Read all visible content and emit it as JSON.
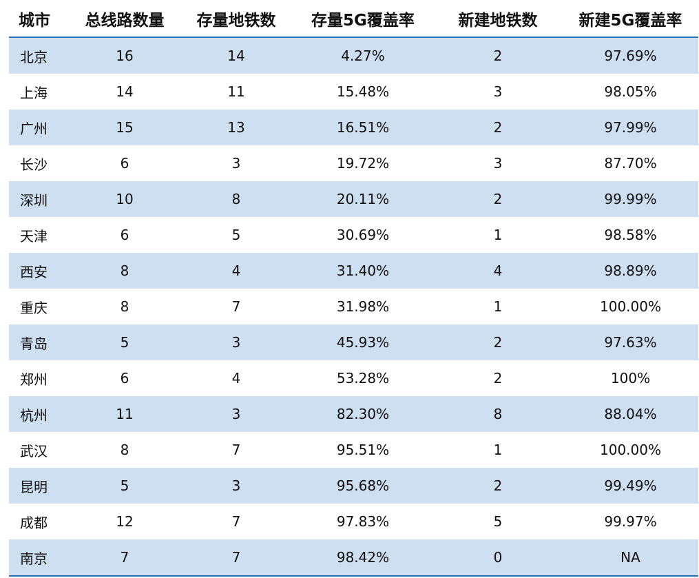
{
  "chart_data": {
    "type": "table",
    "columns": [
      "城市",
      "总线路数量",
      "存量地铁数",
      "存量5G覆盖率",
      "新建地铁数",
      "新建5G覆盖率"
    ],
    "rows": [
      [
        "北京",
        "16",
        "14",
        "4.27%",
        "2",
        "97.69%"
      ],
      [
        "上海",
        "14",
        "11",
        "15.48%",
        "3",
        "98.05%"
      ],
      [
        "广州",
        "15",
        "13",
        "16.51%",
        "2",
        "97.99%"
      ],
      [
        "长沙",
        "6",
        "3",
        "19.72%",
        "3",
        "87.70%"
      ],
      [
        "深圳",
        "10",
        "8",
        "20.11%",
        "2",
        "99.99%"
      ],
      [
        "天津",
        "6",
        "5",
        "30.69%",
        "1",
        "98.58%"
      ],
      [
        "西安",
        "8",
        "4",
        "31.40%",
        "4",
        "98.89%"
      ],
      [
        "重庆",
        "8",
        "7",
        "31.98%",
        "1",
        "100.00%"
      ],
      [
        "青岛",
        "5",
        "3",
        "45.93%",
        "2",
        "97.63%"
      ],
      [
        "郑州",
        "6",
        "4",
        "53.28%",
        "2",
        "100%"
      ],
      [
        "杭州",
        "11",
        "3",
        "82.30%",
        "8",
        "88.04%"
      ],
      [
        "武汉",
        "8",
        "7",
        "95.51%",
        "1",
        "100.00%"
      ],
      [
        "昆明",
        "5",
        "3",
        "95.68%",
        "2",
        "99.49%"
      ],
      [
        "成都",
        "12",
        "7",
        "97.83%",
        "5",
        "99.97%"
      ],
      [
        "南京",
        "7",
        "7",
        "98.42%",
        "0",
        "NA"
      ]
    ]
  },
  "colors": {
    "header_rule": "#2e74b5",
    "band": "#cddff0",
    "plain": "#ffffff"
  }
}
